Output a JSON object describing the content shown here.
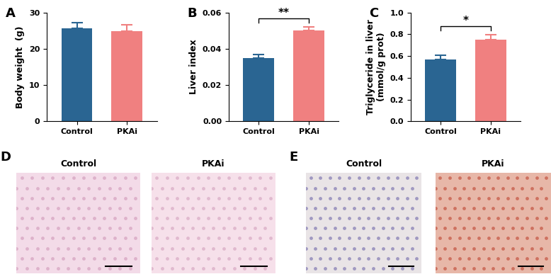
{
  "chart_data": [
    {
      "type": "bar",
      "panel_label": "A",
      "ylabel": "Body weight  (g)",
      "categories": [
        "Control",
        "PKAi"
      ],
      "values": [
        25.6,
        24.8
      ],
      "errors": [
        1.7,
        1.9
      ],
      "colors": [
        "#2a6592",
        "#f08080"
      ],
      "ylim": [
        0,
        30
      ],
      "yticks": [
        0,
        10,
        20,
        30
      ],
      "significance": []
    },
    {
      "type": "bar",
      "panel_label": "B",
      "ylabel": "Liver index",
      "categories": [
        "Control",
        "PKAi"
      ],
      "values": [
        0.035,
        0.05
      ],
      "errors": [
        0.002,
        0.002
      ],
      "colors": [
        "#2a6592",
        "#f08080"
      ],
      "ylim": [
        0,
        0.06
      ],
      "yticks": [
        {
          "value": 0,
          "label": "0.00"
        },
        {
          "value": 0.02,
          "label": "0.02"
        },
        {
          "value": 0.04,
          "label": "0.04"
        },
        {
          "value": 0.06,
          "label": "0.06"
        }
      ],
      "significance": [
        {
          "pair": [
            0,
            1
          ],
          "text": "**"
        }
      ]
    },
    {
      "type": "bar",
      "panel_label": "C",
      "ylabel": "Triglyceride in liver\n(mmol/g prot)",
      "categories": [
        "Control",
        "PKAi"
      ],
      "values": [
        0.57,
        0.75
      ],
      "errors": [
        0.04,
        0.045
      ],
      "colors": [
        "#2a6592",
        "#f08080"
      ],
      "ylim": [
        0,
        1.0
      ],
      "yticks": [
        {
          "value": 0,
          "label": "0.0"
        },
        {
          "value": 0.2,
          "label": "0.2"
        },
        {
          "value": 0.4,
          "label": "0.4"
        },
        {
          "value": 0.6,
          "label": "0.6"
        },
        {
          "value": 0.8,
          "label": "0.8"
        },
        {
          "value": 1.0,
          "label": "1.0"
        }
      ],
      "significance": [
        {
          "pair": [
            0,
            1
          ],
          "text": "*"
        }
      ]
    }
  ],
  "image_panels": [
    {
      "panel_label": "D",
      "images": [
        "Control",
        "PKAi"
      ]
    },
    {
      "panel_label": "E",
      "images": [
        "Control",
        "PKAi"
      ]
    }
  ]
}
